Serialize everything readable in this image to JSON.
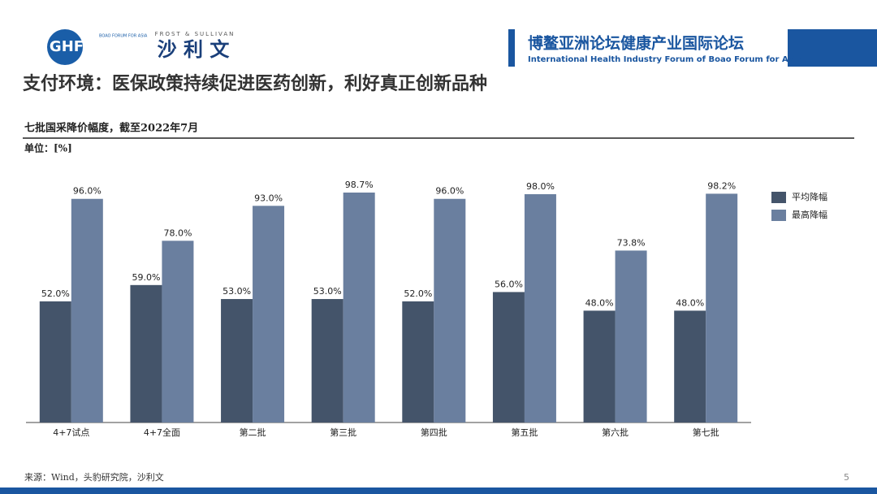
{
  "header": {
    "logo": "GHF",
    "logo_small": "BOAO FORUM FOR ASIA",
    "brand": "沙 利 文",
    "brand_en": "FROST & SULLIVAN",
    "forum_cn": "博鳌亚洲论坛健康产业国际论坛",
    "forum_en": "International Health Industry Forum of Boao Forum for Asia"
  },
  "slide_title": "支付环境：医保政策持续促进医药创新，利好真正创新品种",
  "chart_data": {
    "type": "bar",
    "title": "七批国采降价幅度，截至2022年7月",
    "unit": "单位：[%]",
    "categories": [
      "4+7试点",
      "4+7全面",
      "第二批",
      "第三批",
      "第四批",
      "第五批",
      "第六批",
      "第七批"
    ],
    "series": [
      {
        "name": "平均降幅",
        "color": "#44546a",
        "values": [
          52,
          59,
          53,
          53,
          52,
          56,
          48,
          48
        ],
        "value_labels": [
          "52.0%",
          "59.0%",
          "53.0%",
          "53.0%",
          "52.0%",
          "56.0%",
          "48.0%",
          "48.0%"
        ]
      },
      {
        "name": "最高降幅",
        "color": "#6a7f9f",
        "values": [
          96,
          78,
          93,
          98.7,
          96,
          98,
          73.8,
          98.2
        ],
        "value_labels": [
          "96.0%",
          "78.0%",
          "93.0%",
          "98.7%",
          "96.0%",
          "98.0%",
          "73.8%",
          "98.2%"
        ]
      }
    ],
    "legend": "right"
  },
  "footer": {
    "source": "来源：Wind，头豹研究院，沙利文",
    "page": "5"
  }
}
